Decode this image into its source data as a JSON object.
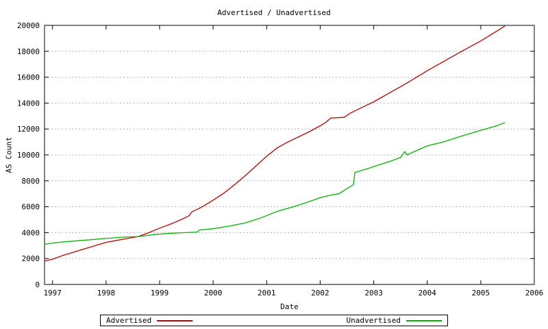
{
  "chart_data": {
    "type": "line",
    "title": "Advertised / Unadvertised",
    "xlabel": "Date",
    "ylabel": "AS Count",
    "xlim": [
      1996.85,
      2006
    ],
    "ylim": [
      0,
      20000
    ],
    "xticks": [
      1997,
      1998,
      1999,
      2000,
      2001,
      2002,
      2003,
      2004,
      2005,
      2006
    ],
    "yticks": [
      0,
      2000,
      4000,
      6000,
      8000,
      10000,
      12000,
      14000,
      16000,
      18000,
      20000
    ],
    "grid": "horizontal-dotted",
    "legend_position": "bottom-center",
    "series": [
      {
        "name": "Advertised",
        "color": "#c40000",
        "points": [
          [
            1996.85,
            1800
          ],
          [
            1997.0,
            1950
          ],
          [
            1997.2,
            2250
          ],
          [
            1997.4,
            2500
          ],
          [
            1997.6,
            2750
          ],
          [
            1997.8,
            3000
          ],
          [
            1998.0,
            3250
          ],
          [
            1998.2,
            3400
          ],
          [
            1998.4,
            3550
          ],
          [
            1998.6,
            3700
          ],
          [
            1998.8,
            4000
          ],
          [
            1999.0,
            4350
          ],
          [
            1999.2,
            4650
          ],
          [
            1999.4,
            5000
          ],
          [
            1999.55,
            5300
          ],
          [
            1999.6,
            5600
          ],
          [
            1999.8,
            6000
          ],
          [
            2000.0,
            6500
          ],
          [
            2000.2,
            7050
          ],
          [
            2000.4,
            7700
          ],
          [
            2000.6,
            8400
          ],
          [
            2000.8,
            9150
          ],
          [
            2001.0,
            9900
          ],
          [
            2001.2,
            10550
          ],
          [
            2001.4,
            11000
          ],
          [
            2001.6,
            11400
          ],
          [
            2001.8,
            11800
          ],
          [
            2002.0,
            12250
          ],
          [
            2002.1,
            12500
          ],
          [
            2002.2,
            12850
          ],
          [
            2002.45,
            12900
          ],
          [
            2002.55,
            13200
          ],
          [
            2002.8,
            13700
          ],
          [
            2003.0,
            14100
          ],
          [
            2003.3,
            14800
          ],
          [
            2003.6,
            15500
          ],
          [
            2004.0,
            16500
          ],
          [
            2004.3,
            17200
          ],
          [
            2004.6,
            17900
          ],
          [
            2005.0,
            18800
          ],
          [
            2005.2,
            19300
          ],
          [
            2005.45,
            19950
          ]
        ]
      },
      {
        "name": "Unadvertised",
        "color": "#00b400",
        "points": [
          [
            1996.85,
            3100
          ],
          [
            1997.1,
            3250
          ],
          [
            1997.4,
            3350
          ],
          [
            1997.7,
            3450
          ],
          [
            1998.0,
            3550
          ],
          [
            1998.3,
            3650
          ],
          [
            1998.6,
            3700
          ],
          [
            1998.9,
            3850
          ],
          [
            1999.2,
            3950
          ],
          [
            1999.5,
            4000
          ],
          [
            1999.7,
            4050
          ],
          [
            1999.75,
            4200
          ],
          [
            2000.0,
            4300
          ],
          [
            2000.3,
            4500
          ],
          [
            2000.6,
            4750
          ],
          [
            2000.9,
            5150
          ],
          [
            2001.2,
            5650
          ],
          [
            2001.5,
            6000
          ],
          [
            2001.8,
            6400
          ],
          [
            2002.0,
            6700
          ],
          [
            2002.2,
            6900
          ],
          [
            2002.35,
            7000
          ],
          [
            2002.5,
            7400
          ],
          [
            2002.62,
            7700
          ],
          [
            2002.65,
            8650
          ],
          [
            2002.9,
            8950
          ],
          [
            2003.0,
            9100
          ],
          [
            2003.3,
            9500
          ],
          [
            2003.5,
            9800
          ],
          [
            2003.58,
            10250
          ],
          [
            2003.62,
            10000
          ],
          [
            2004.0,
            10700
          ],
          [
            2004.3,
            11000
          ],
          [
            2004.6,
            11400
          ],
          [
            2005.0,
            11900
          ],
          [
            2005.3,
            12250
          ],
          [
            2005.45,
            12500
          ]
        ]
      }
    ]
  }
}
